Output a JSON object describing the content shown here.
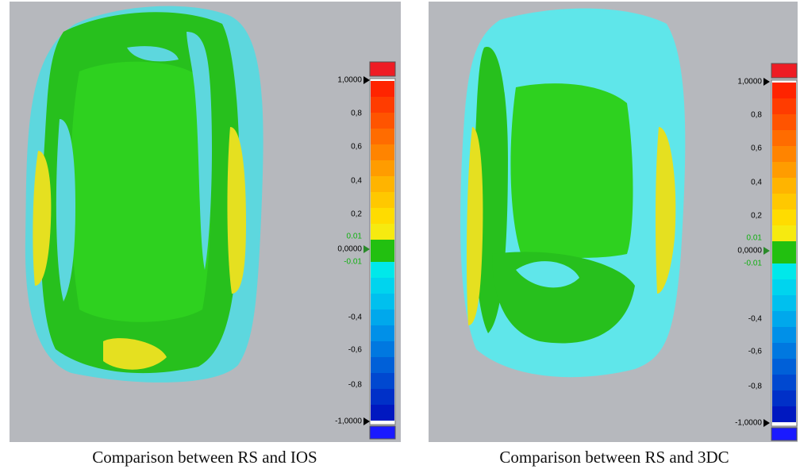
{
  "panels": [
    {
      "caption": "Comparison between RS and IOS",
      "scale_labels": [
        "1,0000",
        "0,8",
        "0,6",
        "0,4",
        "0,2",
        "0.01",
        "0,0000",
        "-0.01",
        "-0,4",
        "-0,6",
        "-0,8",
        "-1,0000"
      ]
    },
    {
      "caption": "Comparison between RS and 3DC",
      "scale_labels": [
        "1,0000",
        "0,8",
        "0,6",
        "0,4",
        "0,2",
        "0.01",
        "0,0000",
        "-0.01",
        "-0,4",
        "-0,6",
        "-0,8",
        "-1,0000"
      ]
    }
  ]
}
